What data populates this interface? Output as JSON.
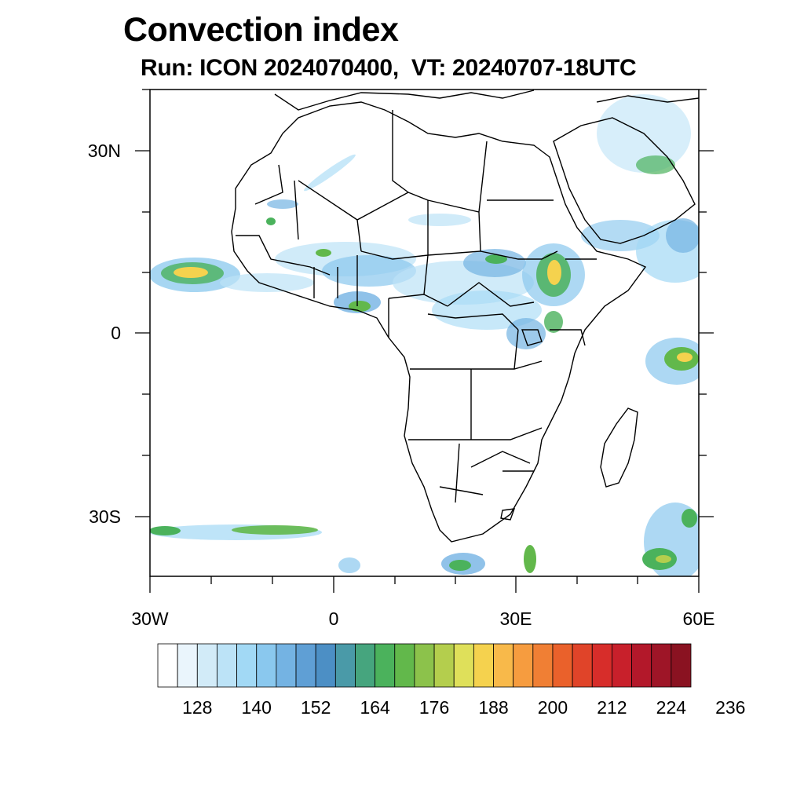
{
  "map": {
    "title": "Convection index",
    "subtitle": "Run: ICON 2024070400,  VT: 20240707-18UTC",
    "lat_labels": [
      "30N",
      "0",
      "30S"
    ],
    "lon_labels": [
      "30W",
      "0",
      "30E",
      "60E"
    ],
    "extent": {
      "lon": [
        -30,
        60
      ],
      "lat": [
        -40,
        40
      ]
    },
    "colorbar": {
      "labels": [
        "128",
        "140",
        "152",
        "164",
        "176",
        "188",
        "200",
        "212",
        "224",
        "236"
      ],
      "colors": [
        "#ffffff",
        "#eaf5fc",
        "#d2ebf8",
        "#bce3f7",
        "#a2d9f5",
        "#8ac8ee",
        "#74b3e3",
        "#5f9fd5",
        "#4c8fc5",
        "#4a9aa8",
        "#46a57e",
        "#4bb25c",
        "#62b84b",
        "#8cc24b",
        "#b4ce4d",
        "#dfe05a",
        "#f5d24e",
        "#f8b94a",
        "#f69c3f",
        "#f07f34",
        "#ea612b",
        "#e04429",
        "#d72d2a",
        "#c8202b",
        "#b3182a",
        "#9e1527",
        "#8a1221"
      ]
    }
  }
}
